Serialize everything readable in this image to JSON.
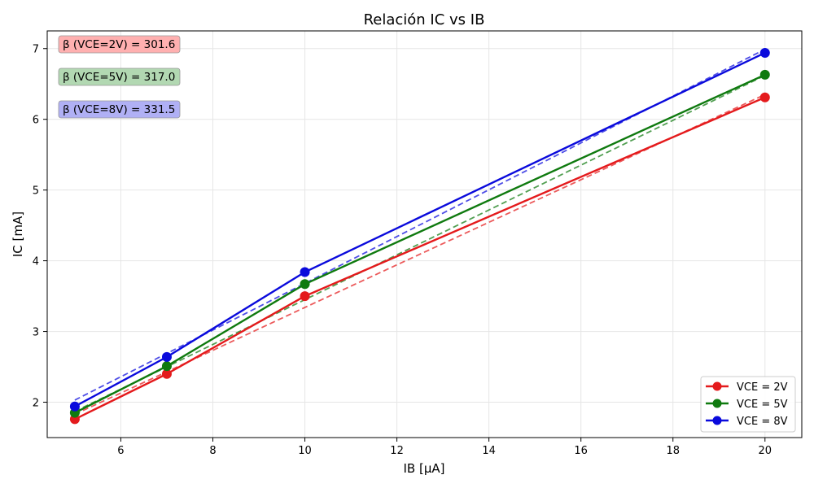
{
  "chart_data": {
    "type": "line",
    "title": "Relación IC vs IB",
    "xlabel": "IB [μA]",
    "ylabel": "IC [mA]",
    "xlim": [
      4.4,
      20.8
    ],
    "ylim": [
      1.5,
      7.25
    ],
    "xticks": [
      6,
      8,
      10,
      12,
      14,
      16,
      18,
      20
    ],
    "yticks": [
      2,
      3,
      4,
      5,
      6,
      7
    ],
    "grid": true,
    "legend_position": "bottom-right",
    "x": [
      5,
      7,
      10,
      20
    ],
    "series": [
      {
        "name": "VCE = 2V",
        "color": "#e41a1c",
        "values": [
          1.76,
          2.4,
          3.5,
          6.31
        ],
        "fit": [
          1.83,
          2.43,
          3.34,
          6.35
        ]
      },
      {
        "name": "VCE = 5V",
        "color": "#0f7a0f",
        "values": [
          1.85,
          2.51,
          3.67,
          6.63
        ],
        "fit": [
          1.87,
          2.5,
          3.45,
          6.62
        ]
      },
      {
        "name": "VCE = 8V",
        "color": "#0a0adc",
        "values": [
          1.94,
          2.64,
          3.84,
          6.94
        ],
        "fit": [
          2.03,
          2.69,
          3.68,
          6.99
        ]
      }
    ],
    "annotations": [
      {
        "text": "β (VCE=2V) = 301.6",
        "color": "#ffb0b0"
      },
      {
        "text": "β (VCE=5V) = 317.0",
        "color": "#b2d8b2"
      },
      {
        "text": "β (VCE=8V) = 331.5",
        "color": "#b0b0f5"
      }
    ]
  }
}
